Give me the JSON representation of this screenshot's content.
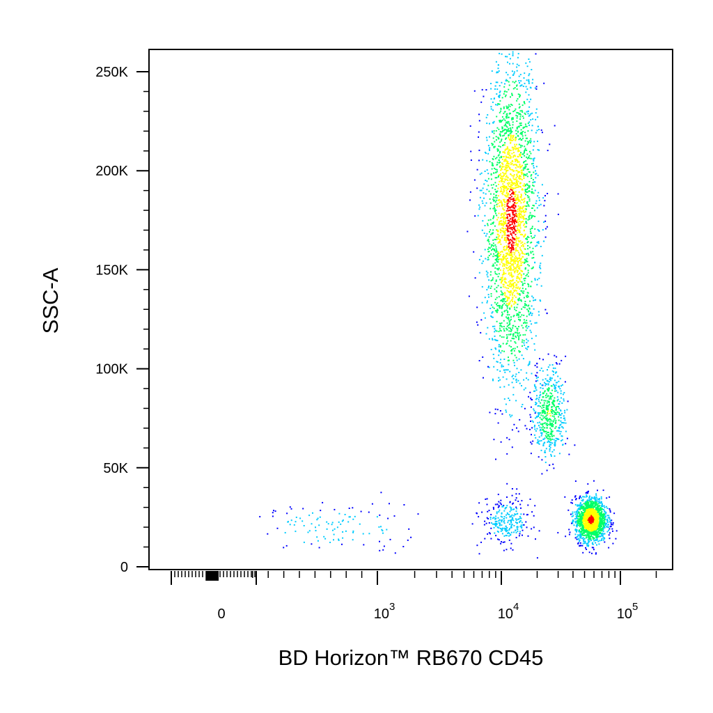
{
  "chart_data": {
    "type": "scatter",
    "title": "",
    "xlabel": "BD Horizon™ RB670 CD45",
    "ylabel": "SSC-A",
    "x_scale": "biexponential (log above ~10^2.5)",
    "ylim": [
      0,
      262144
    ],
    "y_ticks": [
      {
        "value": 0,
        "label": "0"
      },
      {
        "value": 50000,
        "label": "50K"
      },
      {
        "value": 100000,
        "label": "100K"
      },
      {
        "value": 150000,
        "label": "150K"
      },
      {
        "value": 200000,
        "label": "200K"
      },
      {
        "value": 250000,
        "label": "250K"
      }
    ],
    "x_ticks": [
      {
        "value": 0,
        "base": "0",
        "exp": ""
      },
      {
        "value": 1000,
        "base": "10",
        "exp": "3"
      },
      {
        "value": 10000,
        "base": "10",
        "exp": "4"
      },
      {
        "value": 100000,
        "base": "10",
        "exp": "5"
      }
    ],
    "grid": false,
    "legend": "none",
    "density_colors": [
      "#0000ff",
      "#00ccff",
      "#00ff66",
      "#ffff00",
      "#ff0000"
    ],
    "populations": [
      {
        "center_x": 700,
        "center_y": 20000,
        "x_spread_log": 0.18,
        "y_spread": 6000,
        "count": 110
      },
      {
        "center_x": 12000,
        "center_y": 175000,
        "x_spread_log": 0.11,
        "y_spread": 40000,
        "count": 2600
      },
      {
        "center_x": 25000,
        "center_y": 78000,
        "x_spread_log": 0.07,
        "y_spread": 12000,
        "count": 500
      },
      {
        "center_x": 56000,
        "center_y": 24000,
        "x_spread_log": 0.065,
        "y_spread": 5500,
        "count": 1600
      },
      {
        "center_x": 11000,
        "center_y": 23000,
        "x_spread_log": 0.1,
        "y_spread": 6000,
        "count": 260
      }
    ]
  }
}
